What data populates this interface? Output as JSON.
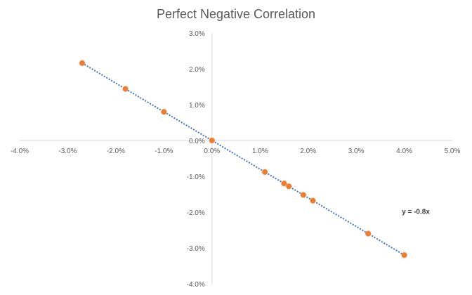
{
  "chart_data": {
    "type": "scatter",
    "title": "Perfect Negative Correlation",
    "xlabel": "",
    "ylabel": "",
    "xlim": [
      -4.0,
      5.0
    ],
    "ylim": [
      -4.0,
      3.0
    ],
    "unit": "%",
    "grid": false,
    "legend": "none",
    "x_tick_labels": [
      "-4.0%",
      "-3.0%",
      "-2.0%",
      "-1.0%",
      "0.0%",
      "1.0%",
      "2.0%",
      "3.0%",
      "4.0%",
      "5.0%"
    ],
    "y_tick_labels": [
      "3.0%",
      "2.0%",
      "1.0%",
      "0.0%",
      "-1.0%",
      "-2.0%",
      "-3.0%",
      "-4.0%"
    ],
    "points": [
      {
        "x": -2.7,
        "y": 2.16
      },
      {
        "x": -1.8,
        "y": 1.44
      },
      {
        "x": -1.0,
        "y": 0.8
      },
      {
        "x": 0.0,
        "y": 0.0
      },
      {
        "x": 1.1,
        "y": -0.88
      },
      {
        "x": 1.5,
        "y": -1.2
      },
      {
        "x": 1.6,
        "y": -1.28
      },
      {
        "x": 1.9,
        "y": -1.52
      },
      {
        "x": 2.1,
        "y": -1.68
      },
      {
        "x": 3.25,
        "y": -2.6
      },
      {
        "x": 4.0,
        "y": -3.2
      }
    ],
    "trendline": {
      "type": "linear",
      "slope": -0.8,
      "intercept": 0,
      "equation": "y = -0.8x",
      "style": "dotted"
    },
    "colors": {
      "points": "#ED7D31",
      "trendline": "#4472C4",
      "axis": "#D9D9D9"
    }
  }
}
